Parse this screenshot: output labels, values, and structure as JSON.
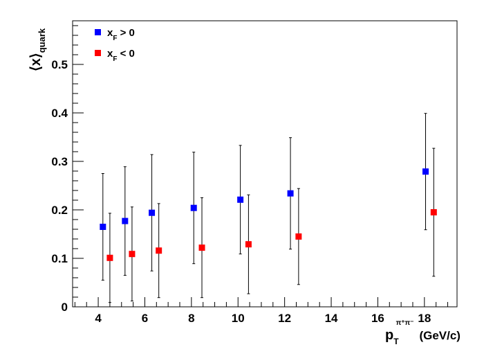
{
  "chart_data": {
    "type": "scatter",
    "xlabel": {
      "main": "p",
      "sub": "T",
      "sup": "π⁺π⁻",
      "unit": "(GeV/c)"
    },
    "ylabel": {
      "main": "⟨x⟩",
      "sub": "quark"
    },
    "xlim": [
      2.9,
      19.4
    ],
    "ylim": [
      0,
      0.59
    ],
    "x_ticks": [
      4,
      6,
      8,
      10,
      12,
      14,
      16,
      18
    ],
    "y_ticks": [
      0,
      0.1,
      0.2,
      0.3,
      0.4,
      0.5
    ],
    "y_tick_labels": [
      "0",
      "0.1",
      "0.2",
      "0.3",
      "0.4",
      "0.5"
    ],
    "grid": false,
    "legend_position": "top-left",
    "series": [
      {
        "name": "x_F > 0",
        "legend": {
          "main": "x",
          "sub": "F",
          "rest": " > 0"
        },
        "color": "#0000ff",
        "points": [
          {
            "x": 4.2,
            "y": 0.165,
            "err_low": 0.11,
            "err_high": 0.11
          },
          {
            "x": 5.15,
            "y": 0.177,
            "err_low": 0.112,
            "err_high": 0.112
          },
          {
            "x": 6.3,
            "y": 0.194,
            "err_low": 0.12,
            "err_high": 0.12
          },
          {
            "x": 8.1,
            "y": 0.204,
            "err_low": 0.115,
            "err_high": 0.115
          },
          {
            "x": 10.1,
            "y": 0.221,
            "err_low": 0.112,
            "err_high": 0.112
          },
          {
            "x": 12.25,
            "y": 0.234,
            "err_low": 0.115,
            "err_high": 0.115
          },
          {
            "x": 18.05,
            "y": 0.279,
            "err_low": 0.12,
            "err_high": 0.12
          }
        ]
      },
      {
        "name": "x_F < 0",
        "legend": {
          "main": "x",
          "sub": "F",
          "rest": " < 0"
        },
        "color": "#ff0000",
        "points": [
          {
            "x": 4.5,
            "y": 0.101,
            "err_low": 0.092,
            "err_high": 0.092
          },
          {
            "x": 5.45,
            "y": 0.109,
            "err_low": 0.097,
            "err_high": 0.097
          },
          {
            "x": 6.6,
            "y": 0.116,
            "err_low": 0.097,
            "err_high": 0.097
          },
          {
            "x": 8.45,
            "y": 0.122,
            "err_low": 0.103,
            "err_high": 0.103
          },
          {
            "x": 10.45,
            "y": 0.129,
            "err_low": 0.102,
            "err_high": 0.102
          },
          {
            "x": 12.6,
            "y": 0.145,
            "err_low": 0.099,
            "err_high": 0.099
          },
          {
            "x": 18.4,
            "y": 0.195,
            "err_low": 0.132,
            "err_high": 0.132
          }
        ]
      }
    ]
  }
}
